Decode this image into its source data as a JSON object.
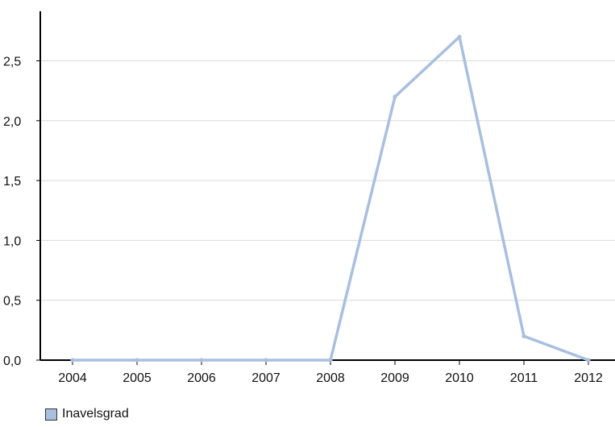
{
  "chart_data": {
    "type": "line",
    "categories": [
      "2004",
      "2005",
      "2006",
      "2007",
      "2008",
      "2009",
      "2010",
      "2011",
      "2012"
    ],
    "series": [
      {
        "name": "Inavelsgrad",
        "values": [
          0,
          0,
          0,
          0,
          0,
          2.2,
          2.7,
          0.2,
          0
        ]
      }
    ],
    "y_ticks": [
      "0,0",
      "0,5",
      "1,0",
      "1,5",
      "2,0",
      "2,5"
    ],
    "ylim": [
      0,
      2.9
    ],
    "grid": true,
    "legend_position": "bottom-left",
    "colors": {
      "series": "#a8bfdf",
      "grid": "#d9d9d9",
      "axis": "#000000"
    }
  }
}
